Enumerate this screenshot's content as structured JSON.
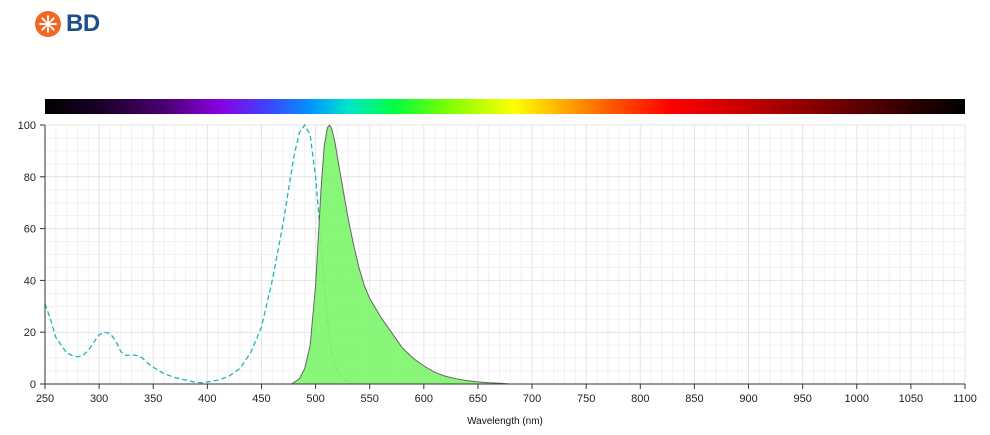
{
  "brand": {
    "name": "BD",
    "logo_icon": "bd-starburst-icon",
    "logo_color": "#f26722",
    "text_color": "#1f4e8c"
  },
  "chart_data": {
    "type": "area",
    "xlabel": "Wavelength (nm)",
    "ylabel": "",
    "xlim": [
      250,
      1100
    ],
    "ylim": [
      0,
      100
    ],
    "x_ticks": [
      250,
      300,
      350,
      400,
      450,
      500,
      550,
      600,
      650,
      700,
      750,
      800,
      850,
      900,
      950,
      1000,
      1050,
      1100
    ],
    "y_ticks": [
      0,
      20,
      40,
      60,
      80,
      100
    ],
    "grid": true,
    "spectrum_bar": true,
    "series": [
      {
        "style": "dashed-line",
        "color": "#21b5b5",
        "x": [
          250,
          255,
          260,
          265,
          270,
          275,
          280,
          285,
          290,
          295,
          300,
          305,
          310,
          315,
          320,
          325,
          330,
          335,
          340,
          345,
          350,
          360,
          370,
          380,
          390,
          395,
          400,
          410,
          420,
          430,
          440,
          450,
          460,
          470,
          475,
          480,
          485,
          490,
          495,
          500,
          505,
          510,
          515,
          520,
          525,
          530,
          535
        ],
        "y": [
          31,
          25,
          18,
          15,
          12,
          11,
          10.5,
          11,
          13,
          16,
          19,
          20,
          19.5,
          17,
          12.5,
          11,
          11.2,
          11,
          10,
          8,
          6.5,
          4,
          2.5,
          1.5,
          0.6,
          0.5,
          0.8,
          1.5,
          3,
          6,
          12,
          22,
          40,
          62,
          75,
          88,
          97,
          100,
          96,
          80,
          55,
          28,
          12,
          5,
          2,
          0.8,
          0
        ]
      },
      {
        "style": "filled-area",
        "color": "#7cf56b",
        "stroke": "#666666",
        "x": [
          478,
          485,
          490,
          495,
          500,
          505,
          508,
          511,
          513,
          515,
          518,
          520,
          525,
          530,
          535,
          540,
          545,
          550,
          560,
          570,
          580,
          590,
          600,
          610,
          620,
          630,
          640,
          650,
          660,
          670,
          680
        ],
        "y": [
          0,
          2,
          6,
          15,
          38,
          75,
          92,
          99,
          100,
          98.5,
          93,
          88,
          76,
          64,
          54,
          45,
          38,
          33,
          26,
          20,
          14,
          10,
          7,
          4.5,
          3,
          2,
          1.3,
          0.8,
          0.5,
          0.3,
          0
        ]
      }
    ]
  }
}
